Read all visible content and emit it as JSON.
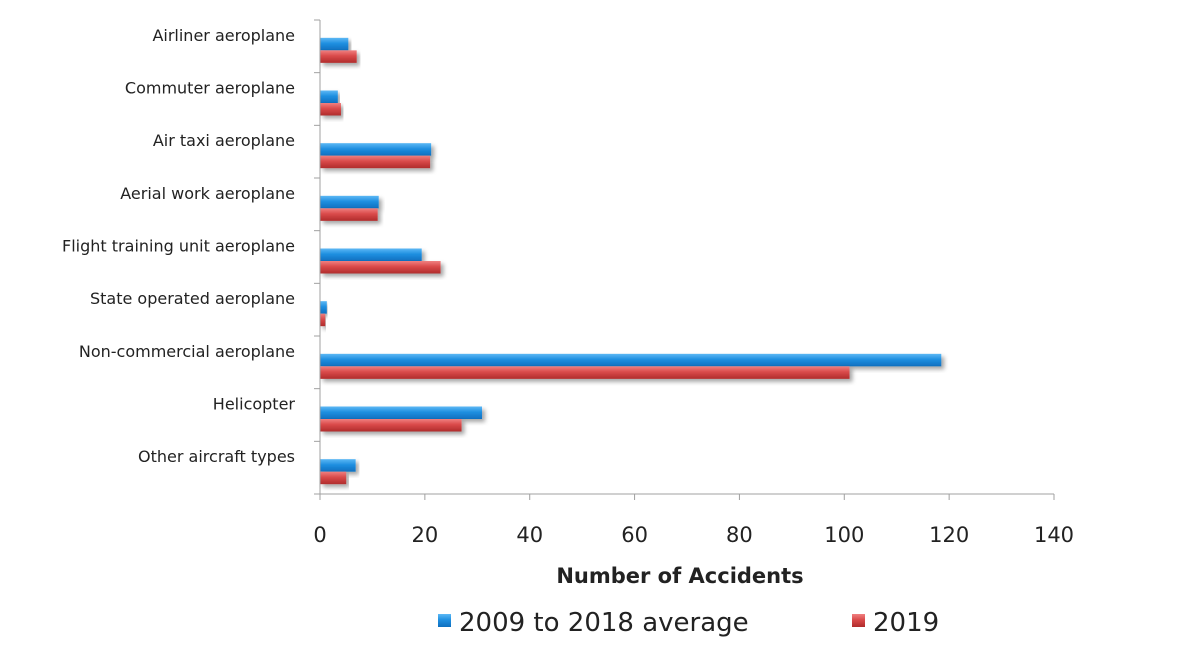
{
  "chart_data": {
    "type": "bar",
    "orientation": "horizontal",
    "categories": [
      "Airliner aeroplane",
      "Commuter aeroplane",
      "Air taxi aeroplane",
      "Aerial work aeroplane",
      "Flight training unit aeroplane",
      "State operated aeroplane",
      "Non-commercial aeroplane",
      "Helicopter",
      "Other aircraft types"
    ],
    "series": [
      {
        "name": "2009 to 2018 average",
        "color": "#1f8fe0",
        "values": [
          5.4,
          3.4,
          21.2,
          11.2,
          19.4,
          1.3,
          118.5,
          30.9,
          6.8
        ]
      },
      {
        "name": "2019",
        "color": "#d94a4a",
        "values": [
          7,
          4,
          21,
          11,
          23,
          1,
          101,
          27,
          5
        ]
      }
    ],
    "xlabel": "Number of Accidents",
    "ylabel": "",
    "xlim": [
      0,
      140
    ],
    "xticks": [
      "0",
      "20",
      "40",
      "60",
      "80",
      "100",
      "120",
      "140"
    ],
    "grid": false,
    "legend_position": "bottom"
  }
}
